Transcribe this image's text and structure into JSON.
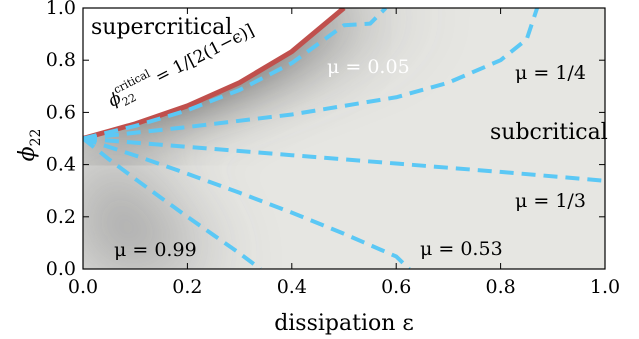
{
  "chart_data": {
    "type": "heatmap",
    "xlabel": "dissipation ε",
    "ylabel": "ϕ22",
    "ylabel_main": "ϕ",
    "ylabel_sub": "22",
    "xlim": [
      0.0,
      1.0
    ],
    "ylim": [
      0.0,
      1.0
    ],
    "xticks": [
      0.0,
      0.2,
      0.4,
      0.6,
      0.8,
      1.0
    ],
    "yticks": [
      0.0,
      0.2,
      0.4,
      0.6,
      0.8,
      1.0
    ],
    "xtick_labels": [
      "0.0",
      "0.2",
      "0.4",
      "0.6",
      "0.8",
      "1.0"
    ],
    "ytick_labels": [
      "0.0",
      "0.2",
      "0.4",
      "0.6",
      "0.8",
      "1.0"
    ],
    "regions": {
      "supercritical": "supercritical",
      "subcritical": "subcritical"
    },
    "critical_curve": {
      "label_main": "ϕ",
      "label_sub": "22",
      "label_sup": "critical",
      "label_rhs": "= 1/[2(1−ϵ)]",
      "color": "#c0504d",
      "x": [
        0.0,
        0.1,
        0.2,
        0.3,
        0.4,
        0.5
      ],
      "y": [
        0.5,
        0.556,
        0.625,
        0.714,
        0.833,
        1.0
      ]
    },
    "mu_curves": [
      {
        "label": "μ = 0.05",
        "color": "#5bc8f5",
        "x": [
          0.0,
          0.1,
          0.2,
          0.3,
          0.4,
          0.5,
          0.55,
          0.58
        ],
        "y": [
          0.5,
          0.548,
          0.608,
          0.686,
          0.789,
          0.934,
          0.94,
          1.0
        ]
      },
      {
        "label": "μ = 1/4",
        "color": "#5bc8f5",
        "x": [
          0.0,
          0.2,
          0.4,
          0.6,
          0.7,
          0.8,
          0.85,
          0.87
        ],
        "y": [
          0.5,
          0.544,
          0.592,
          0.658,
          0.714,
          0.8,
          0.88,
          1.0
        ]
      },
      {
        "label": "μ = 1/3",
        "color": "#5bc8f5",
        "x": [
          0.0,
          0.2,
          0.4,
          0.6,
          0.8,
          1.0
        ],
        "y": [
          0.5,
          0.468,
          0.436,
          0.404,
          0.372,
          0.338
        ]
      },
      {
        "label": "μ = 0.53",
        "color": "#5bc8f5",
        "x": [
          0.0,
          0.1,
          0.2,
          0.3,
          0.4,
          0.5,
          0.6,
          0.625
        ],
        "y": [
          0.5,
          0.435,
          0.365,
          0.292,
          0.216,
          0.135,
          0.048,
          0.0
        ]
      },
      {
        "label": "μ = 0.99",
        "color": "#5bc8f5",
        "x": [
          0.0,
          0.05,
          0.1,
          0.15,
          0.2,
          0.25,
          0.3,
          0.34
        ],
        "y": [
          0.5,
          0.42,
          0.345,
          0.272,
          0.2,
          0.13,
          0.06,
          0.0
        ]
      }
    ],
    "colormap": {
      "low": "#f0f0ec",
      "high": "#0c0c10"
    },
    "grid": false,
    "legend": "none"
  }
}
